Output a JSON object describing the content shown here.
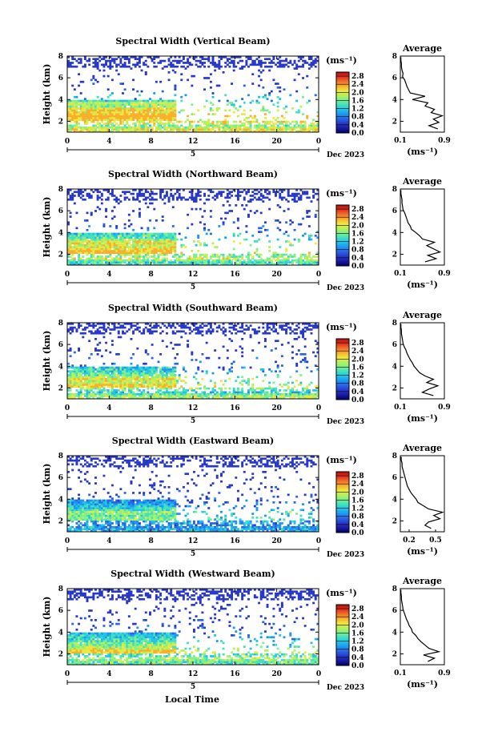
{
  "chart_data": [
    {
      "type": "heatmap",
      "title": "Spectral Width (Vertical Beam)",
      "ylabel": "Height (km)",
      "x_ticks": [
        "0",
        "4",
        "8",
        "12",
        "16",
        "20",
        "0"
      ],
      "x_day_label": "5",
      "month_label": "Dec 2023",
      "y_ticks": [
        "2",
        "4",
        "6",
        "8"
      ],
      "xlim": [
        0,
        24
      ],
      "ylim": [
        1,
        8
      ],
      "colorbar": {
        "unit": "(ms⁻¹)",
        "ticks": [
          "0.0",
          "0.4",
          "0.8",
          "1.2",
          "1.6",
          "2.0",
          "2.4",
          "2.8"
        ],
        "range": [
          0,
          3.0
        ]
      },
      "profile": {
        "title": "Average",
        "xlabel": "(ms⁻¹)",
        "x_ticks": [
          "0.1",
          "0.9"
        ],
        "y_ticks": [
          "2",
          "4",
          "6",
          "8"
        ],
        "xlim": [
          0.1,
          0.9
        ],
        "ylim": [
          1,
          8
        ],
        "heights": [
          1.3,
          1.6,
          1.9,
          2.2,
          2.5,
          2.8,
          3.1,
          3.4,
          3.7,
          4.0,
          4.3,
          4.6,
          4.9,
          5.2,
          5.5,
          5.8,
          6.1,
          6.4,
          6.7,
          7.0,
          7.3,
          7.6,
          7.9
        ],
        "values": [
          0.78,
          0.62,
          0.8,
          0.7,
          0.86,
          0.66,
          0.72,
          0.55,
          0.6,
          0.32,
          0.55,
          0.28,
          0.25,
          0.22,
          0.2,
          0.18,
          0.14,
          0.15,
          0.13,
          0.12,
          0.12,
          0.11,
          0.11
        ]
      }
    },
    {
      "type": "heatmap",
      "title": "Spectral Width (Northward Beam)",
      "ylabel": "Height (km)",
      "x_ticks": [
        "0",
        "4",
        "8",
        "12",
        "16",
        "20",
        "0"
      ],
      "x_day_label": "5",
      "month_label": "Dec 2023",
      "y_ticks": [
        "2",
        "4",
        "6",
        "8"
      ],
      "xlim": [
        0,
        24
      ],
      "ylim": [
        1,
        8
      ],
      "colorbar": {
        "unit": "(ms⁻¹)",
        "ticks": [
          "0.0",
          "0.4",
          "0.8",
          "1.2",
          "1.6",
          "2.0",
          "2.4",
          "2.8"
        ],
        "range": [
          0,
          3.0
        ]
      },
      "profile": {
        "title": "Average",
        "xlabel": "(ms⁻¹)",
        "x_ticks": [
          "0.1",
          "0.9"
        ],
        "y_ticks": [
          "2",
          "4",
          "6",
          "8"
        ],
        "xlim": [
          0.1,
          0.9
        ],
        "ylim": [
          1,
          8
        ],
        "heights": [
          1.3,
          1.6,
          1.9,
          2.2,
          2.5,
          2.8,
          3.1,
          3.4,
          3.7,
          4.0,
          4.3,
          4.6,
          4.9,
          5.2,
          5.5,
          5.8,
          6.1,
          6.4,
          6.7,
          7.0,
          7.3,
          7.6,
          7.9
        ],
        "values": [
          0.55,
          0.75,
          0.6,
          0.82,
          0.7,
          0.58,
          0.72,
          0.5,
          0.45,
          0.38,
          0.3,
          0.28,
          0.24,
          0.22,
          0.2,
          0.18,
          0.15,
          0.14,
          0.13,
          0.13,
          0.12,
          0.11,
          0.11
        ]
      }
    },
    {
      "type": "heatmap",
      "title": "Spectral Width (Southward Beam)",
      "ylabel": "Height (km)",
      "x_ticks": [
        "0",
        "4",
        "8",
        "12",
        "16",
        "20",
        "0"
      ],
      "x_day_label": "5",
      "month_label": "Dec 2023",
      "y_ticks": [
        "2",
        "4",
        "6",
        "8"
      ],
      "xlim": [
        0,
        24
      ],
      "ylim": [
        1,
        8
      ],
      "colorbar": {
        "unit": "(ms⁻¹)",
        "ticks": [
          "0.0",
          "0.4",
          "0.8",
          "1.2",
          "1.6",
          "2.0",
          "2.4",
          "2.8"
        ],
        "range": [
          0,
          3.0
        ]
      },
      "profile": {
        "title": "Average",
        "xlabel": "(ms⁻¹)",
        "x_ticks": [
          "0.1",
          "0.9"
        ],
        "y_ticks": [
          "2",
          "4",
          "6",
          "8"
        ],
        "xlim": [
          0.1,
          0.9
        ],
        "ylim": [
          1,
          8
        ],
        "heights": [
          1.3,
          1.6,
          1.9,
          2.2,
          2.5,
          2.8,
          3.1,
          3.4,
          3.7,
          4.0,
          4.3,
          4.6,
          4.9,
          5.2,
          5.5,
          5.8,
          6.1,
          6.4,
          6.7,
          7.0,
          7.3,
          7.6,
          7.9
        ],
        "values": [
          0.7,
          0.5,
          0.62,
          0.78,
          0.58,
          0.7,
          0.55,
          0.45,
          0.4,
          0.35,
          0.32,
          0.28,
          0.25,
          0.22,
          0.2,
          0.17,
          0.15,
          0.14,
          0.13,
          0.12,
          0.12,
          0.11,
          0.11
        ]
      }
    },
    {
      "type": "heatmap",
      "title": "Spectral Width (Eastward Beam)",
      "ylabel": "Height (km)",
      "x_ticks": [
        "0",
        "4",
        "8",
        "12",
        "16",
        "20",
        "0"
      ],
      "x_day_label": "5",
      "month_label": "Dec 2023",
      "y_ticks": [
        "2",
        "4",
        "6",
        "8"
      ],
      "xlim": [
        0,
        24
      ],
      "ylim": [
        1,
        8
      ],
      "colorbar": {
        "unit": "(ms⁻¹)",
        "ticks": [
          "0.0",
          "0.4",
          "0.8",
          "1.2",
          "1.6",
          "2.0",
          "2.4",
          "2.8"
        ],
        "range": [
          0,
          3.0
        ]
      },
      "profile": {
        "title": "Average",
        "xlabel": "(ms⁻¹)",
        "x_ticks": [
          "0.2",
          "0.5"
        ],
        "y_ticks": [
          "2",
          "4",
          "6",
          "8"
        ],
        "xlim": [
          0.1,
          0.6
        ],
        "ylim": [
          1,
          8
        ],
        "heights": [
          1.3,
          1.6,
          1.9,
          2.2,
          2.5,
          2.8,
          3.1,
          3.4,
          3.7,
          4.0,
          4.3,
          4.6,
          4.9,
          5.2,
          5.5,
          5.8,
          6.1,
          6.4,
          6.7,
          7.0,
          7.3,
          7.6,
          7.9
        ],
        "values": [
          0.45,
          0.38,
          0.42,
          0.55,
          0.48,
          0.58,
          0.42,
          0.36,
          0.3,
          0.28,
          0.25,
          0.22,
          0.2,
          0.18,
          0.17,
          0.16,
          0.15,
          0.14,
          0.13,
          0.12,
          0.12,
          0.11,
          0.11
        ]
      }
    },
    {
      "type": "heatmap",
      "title": "Spectral Width (Westward Beam)",
      "ylabel": "Height (km)",
      "x_ticks": [
        "0",
        "4",
        "8",
        "12",
        "16",
        "20",
        "0"
      ],
      "x_day_label": "5",
      "month_label": "Dec 2023",
      "y_ticks": [
        "2",
        "4",
        "6",
        "8"
      ],
      "xlim": [
        0,
        24
      ],
      "ylim": [
        1,
        8
      ],
      "colorbar": {
        "unit": "(ms⁻¹)",
        "ticks": [
          "0.0",
          "0.4",
          "0.8",
          "1.2",
          "1.6",
          "2.0",
          "2.4",
          "2.8"
        ],
        "range": [
          0,
          3.0
        ]
      },
      "profile": {
        "title": "Average",
        "xlabel": "(ms⁻¹)",
        "x_ticks": [
          "0.1",
          "0.9"
        ],
        "y_ticks": [
          "2",
          "4",
          "6",
          "8"
        ],
        "xlim": [
          0.1,
          0.9
        ],
        "ylim": [
          1,
          8
        ],
        "heights": [
          1.3,
          1.6,
          1.9,
          2.2,
          2.5,
          2.8,
          3.1,
          3.4,
          3.7,
          4.0,
          4.3,
          4.6,
          4.9,
          5.2,
          5.5,
          5.8,
          6.1,
          6.4,
          6.7,
          7.0,
          7.3,
          7.6,
          7.9
        ],
        "values": [
          0.6,
          0.72,
          0.52,
          0.8,
          0.62,
          0.55,
          0.48,
          0.42,
          0.38,
          0.32,
          0.3,
          0.26,
          0.24,
          0.21,
          0.19,
          0.17,
          0.15,
          0.14,
          0.13,
          0.12,
          0.12,
          0.11,
          0.11
        ]
      }
    }
  ],
  "footer": {
    "xlabel": "Local Time"
  },
  "colors": {
    "colormap": [
      "#000066",
      "#1a1aa0",
      "#2838c8",
      "#2a64e6",
      "#1e96f0",
      "#20c2e8",
      "#40e0c0",
      "#7cf08c",
      "#b8f05a",
      "#f0e640",
      "#f8b02c",
      "#f2702a",
      "#e03020",
      "#b01010"
    ]
  }
}
